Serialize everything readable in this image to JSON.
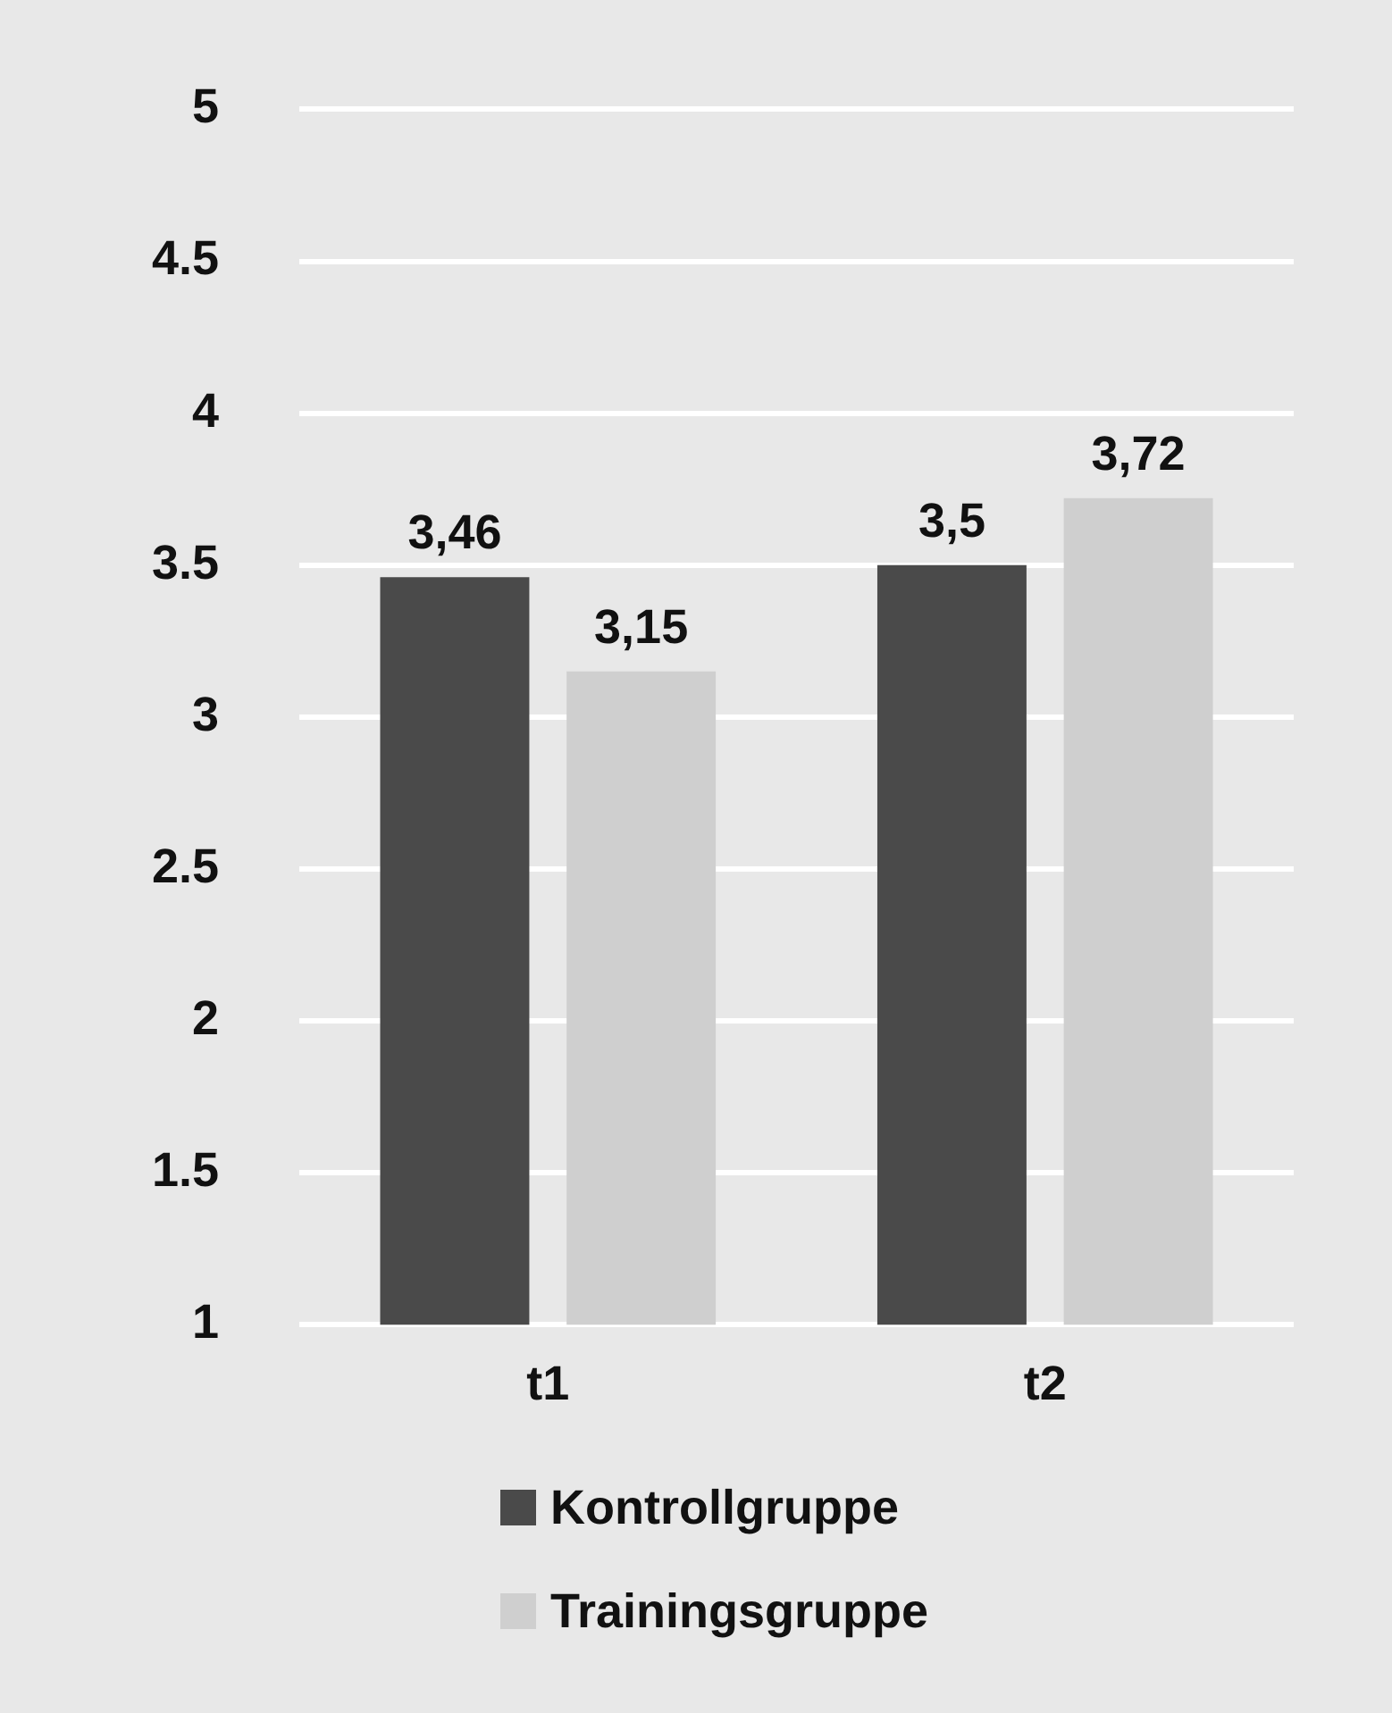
{
  "chart_data": {
    "type": "bar",
    "categories": [
      "t1",
      "t2"
    ],
    "series": [
      {
        "name": "Kontrollgruppe",
        "color": "#4a4a4a",
        "values": [
          3.46,
          3.5
        ],
        "value_labels": [
          "3,46",
          "3,5"
        ]
      },
      {
        "name": "Trainingsgruppe",
        "color": "#cfcfcf",
        "values": [
          3.15,
          3.72
        ],
        "value_labels": [
          "3,15",
          "3,72"
        ]
      }
    ],
    "ylim": [
      1,
      5
    ],
    "yticks": [
      1,
      1.5,
      2,
      2.5,
      3,
      3.5,
      4,
      4.5,
      5
    ],
    "grid": "y",
    "legend": "bottom"
  }
}
